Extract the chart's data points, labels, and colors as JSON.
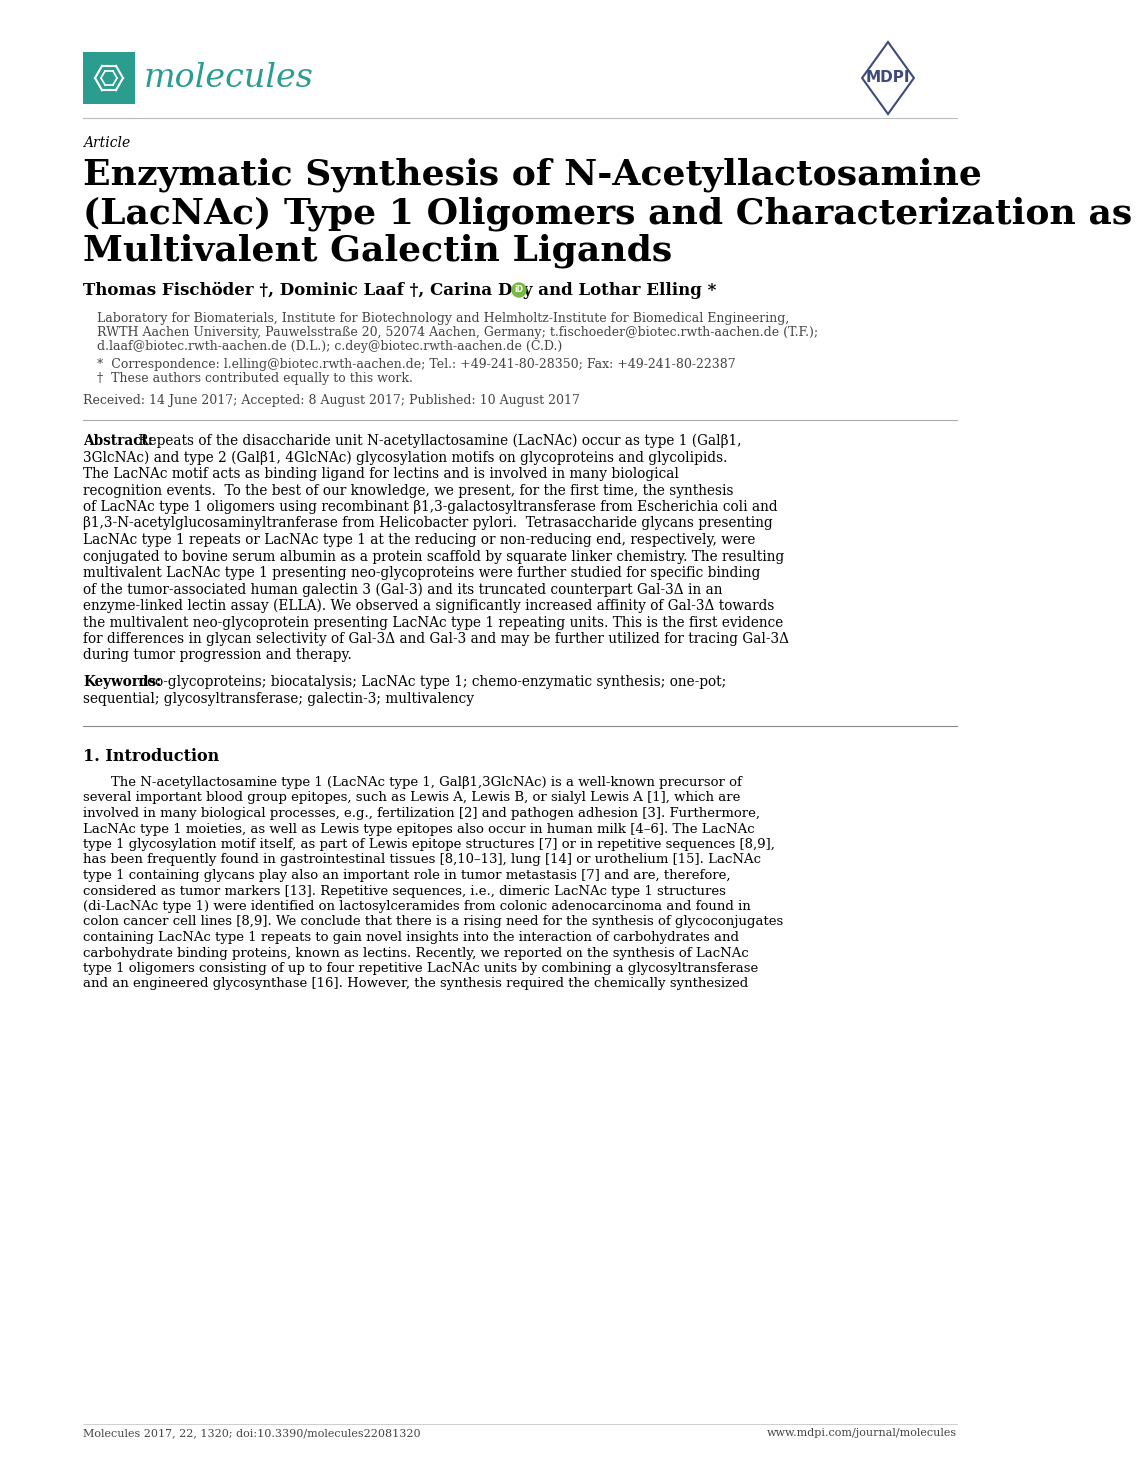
{
  "page_bg": "#ffffff",
  "journal_name": "molecules",
  "journal_color": "#2a9d8f",
  "mdpi_color": "#3d4a7a",
  "article_label": "Article",
  "title_line1": "Enzymatic Synthesis of N-Acetyllactosamine",
  "title_line2": "(LacNAc) Type 1 Oligomers and Characterization as",
  "title_line3": "Multivalent Galectin Ligands",
  "authors": "Thomas Fischöder †, Dominic Laaf †, Carina Dey and Lothar Elling *",
  "affiliation1": "Laboratory for Biomaterials, Institute for Biotechnology and Helmholtz-Institute for Biomedical Engineering,",
  "affiliation2": "RWTH Aachen University, Pauwelsstraße 20, 52074 Aachen, Germany; t.fischoeder@biotec.rwth-aachen.de (T.F.);",
  "affiliation3": "d.laaf@biotec.rwth-aachen.de (D.L.); c.dey@biotec.rwth-aachen.de (C.D.)",
  "correspondence": "*  Correspondence: l.elling@biotec.rwth-aachen.de; Tel.: +49-241-80-28350; Fax: +49-241-80-22387",
  "equal_contrib": "†  These authors contributed equally to this work.",
  "received": "Received: 14 June 2017; Accepted: 8 August 2017; Published: 10 August 2017",
  "abstract_bold": "Abstract:",
  "abstract_line1": " Repeats of the disaccharide unit N-acetyllactosamine (LacNAc) occur as type 1 (Galβ1,",
  "abstract_line2": "3GlcNAc) and type 2 (Galβ1, 4GlcNAc) glycosylation motifs on glycoproteins and glycolipids.",
  "abstract_line3": "The LacNAc motif acts as binding ligand for lectins and is involved in many biological",
  "abstract_line4": "recognition events.  To the best of our knowledge, we present, for the first time, the synthesis",
  "abstract_line5": "of LacNAc type 1 oligomers using recombinant β1,3-galactosyltransferase from Escherichia coli and",
  "abstract_line6": "β1,3-N-acetylglucosaminyltranferase from Helicobacter pylori.  Tetrasaccharide glycans presenting",
  "abstract_line7": "LacNAc type 1 repeats or LacNAc type 1 at the reducing or non-reducing end, respectively, were",
  "abstract_line8": "conjugated to bovine serum albumin as a protein scaffold by squarate linker chemistry. The resulting",
  "abstract_line9": "multivalent LacNAc type 1 presenting neo-glycoproteins were further studied for specific binding",
  "abstract_line10": "of the tumor-associated human galectin 3 (Gal-3) and its truncated counterpart Gal-3Δ in an",
  "abstract_line11": "enzyme-linked lectin assay (ELLA). We observed a significantly increased affinity of Gal-3Δ towards",
  "abstract_line12": "the multivalent neo-glycoprotein presenting LacNAc type 1 repeating units. This is the first evidence",
  "abstract_line13": "for differences in glycan selectivity of Gal-3Δ and Gal-3 and may be further utilized for tracing Gal-3Δ",
  "abstract_line14": "during tumor progression and therapy.",
  "keywords_bold": "Keywords:",
  "keywords_line1": " neo-glycoproteins; biocatalysis; LacNAc type 1; chemo-enzymatic synthesis; one-pot;",
  "keywords_line2": "sequential; glycosyltransferase; galectin-3; multivalency",
  "section1_title": "1. Introduction",
  "intro_line1": "The N-acetyllactosamine type 1 (LacNAc type 1, Galβ1,3GlcNAc) is a well-known precursor of",
  "intro_line2": "several important blood group epitopes, such as Lewis A, Lewis B, or sialyl Lewis A [1], which are",
  "intro_line3": "involved in many biological processes, e.g., fertilization [2] and pathogen adhesion [3]. Furthermore,",
  "intro_line4": "LacNAc type 1 moieties, as well as Lewis type epitopes also occur in human milk [4–6]. The LacNAc",
  "intro_line5": "type 1 glycosylation motif itself, as part of Lewis epitope structures [7] or in repetitive sequences [8,9],",
  "intro_line6": "has been frequently found in gastrointestinal tissues [8,10–13], lung [14] or urothelium [15]. LacNAc",
  "intro_line7": "type 1 containing glycans play also an important role in tumor metastasis [7] and are, therefore,",
  "intro_line8": "considered as tumor markers [13]. Repetitive sequences, i.e., dimeric LacNAc type 1 structures",
  "intro_line9": "(di-LacNAc type 1) were identified on lactosylceramides from colonic adenocarcinoma and found in",
  "intro_line10": "colon cancer cell lines [8,9]. We conclude that there is a rising need for the synthesis of glycoconjugates",
  "intro_line11": "containing LacNAc type 1 repeats to gain novel insights into the interaction of carbohydrates and",
  "intro_line12": "carbohydrate binding proteins, known as lectins. Recently, we reported on the synthesis of LacNAc",
  "intro_line13": "type 1 oligomers consisting of up to four repetitive LacNAc units by combining a glycosyltransferase",
  "intro_line14": "and an engineered glycosynthase [16]. However, the synthesis required the chemically synthesized",
  "footer_left": "Molecules 2017, 22, 1320; doi:10.3390/molecules22081320",
  "footer_right": "www.mdpi.com/journal/molecules",
  "text_color": "#000000",
  "light_text_color": "#444444"
}
